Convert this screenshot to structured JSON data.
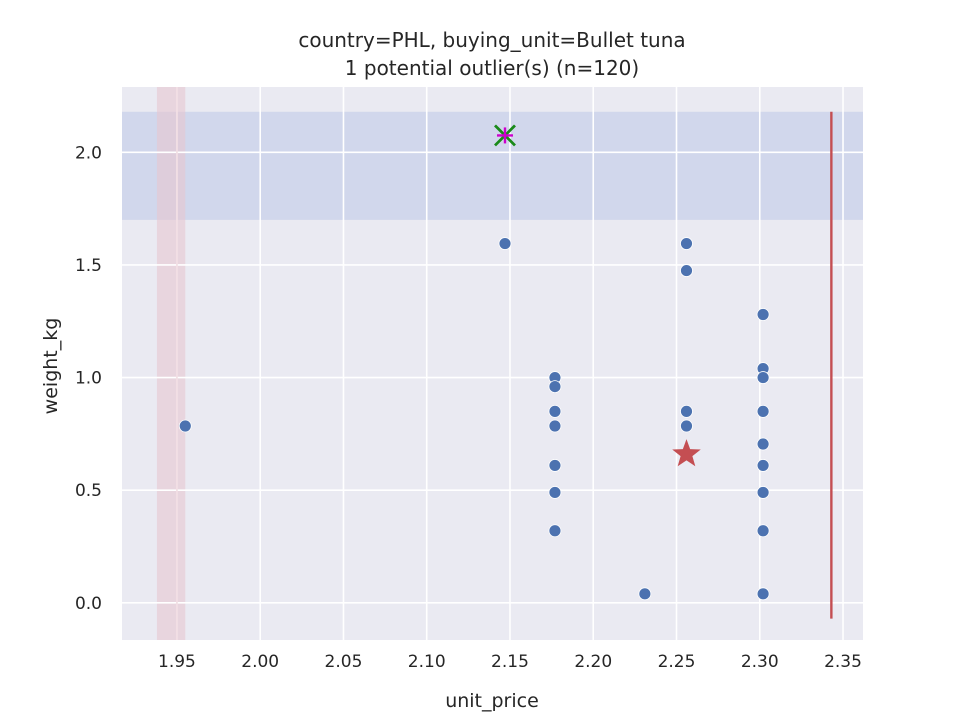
{
  "chart_data": {
    "type": "scatter",
    "title": "country=PHL, buying_unit=Bullet tuna",
    "subtitle": "1 potential outlier(s) (n=120)",
    "xlabel": "unit_price",
    "ylabel": "weight_kg",
    "xlim": [
      1.917,
      2.362
    ],
    "ylim": [
      -0.165,
      2.29
    ],
    "xticks": [
      1.95,
      2.0,
      2.05,
      2.1,
      2.15,
      2.2,
      2.25,
      2.3,
      2.35
    ],
    "xtick_labels": [
      "1.95",
      "2.00",
      "2.05",
      "2.10",
      "2.15",
      "2.20",
      "2.25",
      "2.30",
      "2.35"
    ],
    "yticks": [
      0.0,
      0.5,
      1.0,
      1.5,
      2.0
    ],
    "ytick_labels": [
      "0.0",
      "0.5",
      "1.0",
      "1.5",
      "2.0"
    ],
    "grid": true,
    "points": [
      {
        "x": 1.955,
        "y": 0.785
      },
      {
        "x": 2.147,
        "y": 1.595
      },
      {
        "x": 2.177,
        "y": 1.0
      },
      {
        "x": 2.177,
        "y": 0.96
      },
      {
        "x": 2.177,
        "y": 0.85
      },
      {
        "x": 2.177,
        "y": 0.785
      },
      {
        "x": 2.177,
        "y": 0.61
      },
      {
        "x": 2.177,
        "y": 0.49
      },
      {
        "x": 2.177,
        "y": 0.32
      },
      {
        "x": 2.231,
        "y": 0.04
      },
      {
        "x": 2.256,
        "y": 1.595
      },
      {
        "x": 2.256,
        "y": 1.475
      },
      {
        "x": 2.256,
        "y": 0.85
      },
      {
        "x": 2.256,
        "y": 0.785
      },
      {
        "x": 2.302,
        "y": 1.28
      },
      {
        "x": 2.302,
        "y": 1.04
      },
      {
        "x": 2.302,
        "y": 1.0
      },
      {
        "x": 2.302,
        "y": 0.85
      },
      {
        "x": 2.302,
        "y": 0.705
      },
      {
        "x": 2.302,
        "y": 0.61
      },
      {
        "x": 2.302,
        "y": 0.49
      },
      {
        "x": 2.302,
        "y": 0.32
      },
      {
        "x": 2.302,
        "y": 0.04
      }
    ],
    "outlier": {
      "x": 2.147,
      "y": 2.075
    },
    "star": {
      "x": 2.256,
      "y": 0.66
    },
    "y_band": [
      1.7,
      2.18
    ],
    "x_band": [
      1.938,
      1.955
    ],
    "x_band_line": 1.95,
    "vline": {
      "x": 2.343,
      "y0": -0.07,
      "y1": 2.18
    },
    "colors": {
      "point": "#4c72b0",
      "point_edge": "#ffffff",
      "outlier_x": "#1a8a1a",
      "outlier_plus": "#cc00cc",
      "star": "#c44e52",
      "vline": "#c44e52",
      "y_band": "#c8d0ea",
      "x_band": "#e6c6d0",
      "plot_bg": "#eaeaf2",
      "grid": "#ffffff"
    }
  }
}
